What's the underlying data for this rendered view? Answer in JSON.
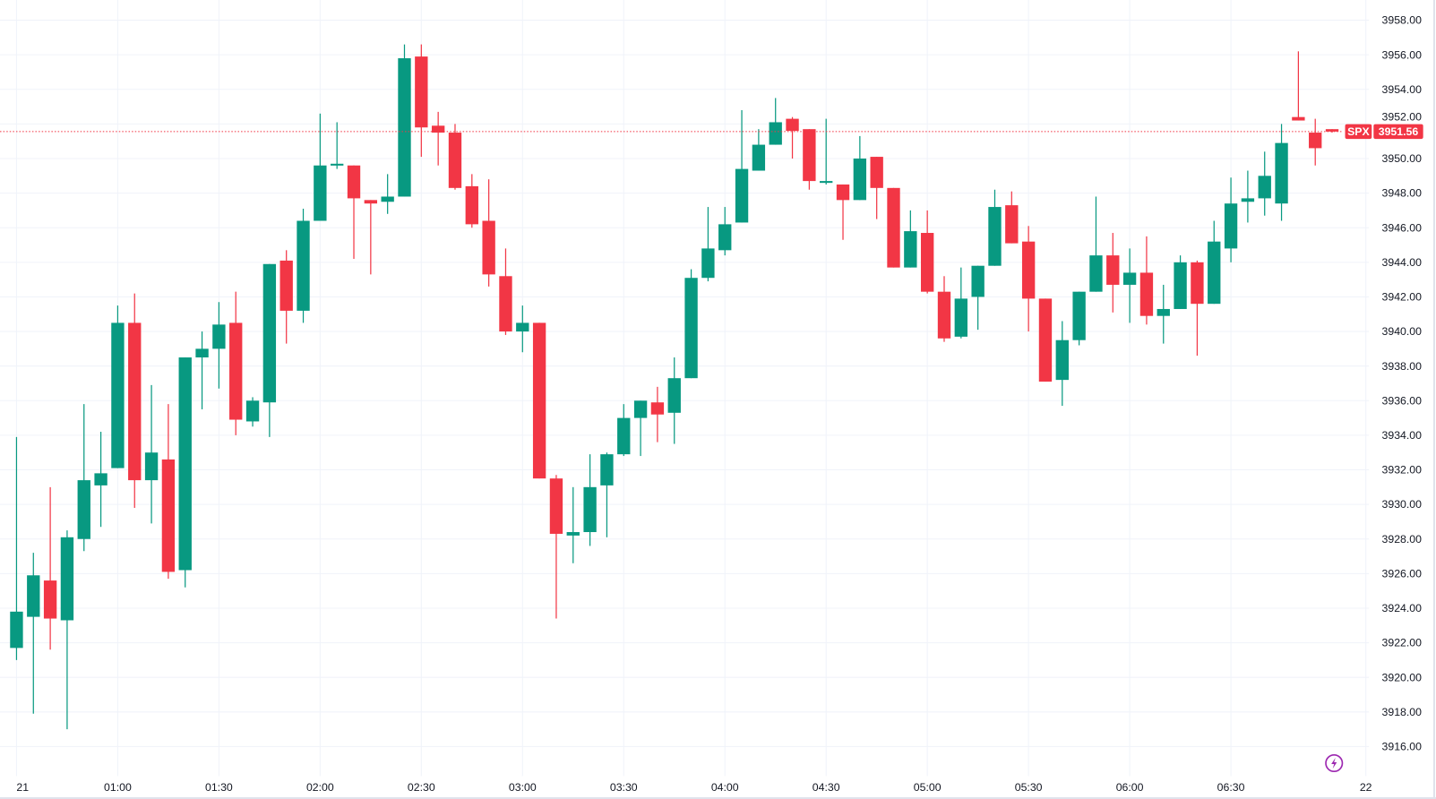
{
  "chart_data": {
    "type": "candlestick",
    "title": "",
    "symbol": "SPX",
    "last_price_label": "3951.56",
    "interval_minutes": 5,
    "ylim": [
      3915,
      3959
    ],
    "grid": true,
    "colors": {
      "up": "#089981",
      "down": "#F23645",
      "grid": "#F0F3FA",
      "last_price": "#F23645",
      "flash_icon": "#9C27B0"
    },
    "y_ticks": [
      "3958.00",
      "3956.00",
      "3954.00",
      "3952.00",
      "3950.00",
      "3948.00",
      "3946.00",
      "3944.00",
      "3942.00",
      "3940.00",
      "3938.00",
      "3936.00",
      "3934.00",
      "3932.00",
      "3930.00",
      "3928.00",
      "3926.00",
      "3924.00",
      "3922.00",
      "3920.00",
      "3918.00",
      "3916.00"
    ],
    "x_ticks": [
      {
        "label": "21",
        "index": 0
      },
      {
        "label": "01:00",
        "index": 6
      },
      {
        "label": "01:30",
        "index": 12
      },
      {
        "label": "02:00",
        "index": 18
      },
      {
        "label": "02:30",
        "index": 24
      },
      {
        "label": "03:00",
        "index": 30
      },
      {
        "label": "03:30",
        "index": 36
      },
      {
        "label": "04:00",
        "index": 42
      },
      {
        "label": "04:30",
        "index": 48
      },
      {
        "label": "05:00",
        "index": 54
      },
      {
        "label": "05:30",
        "index": 60
      },
      {
        "label": "06:00",
        "index": 66
      },
      {
        "label": "06:30",
        "index": 72
      },
      {
        "label": "22",
        "index": 80
      }
    ],
    "ohlc": [
      [
        3921.7,
        3933.9,
        3921.0,
        3923.8
      ],
      [
        3923.5,
        3927.2,
        3917.9,
        3925.9
      ],
      [
        3925.6,
        3931.0,
        3921.6,
        3923.4
      ],
      [
        3923.3,
        3928.5,
        3917.0,
        3928.1
      ],
      [
        3928.0,
        3935.8,
        3927.3,
        3931.4
      ],
      [
        3931.1,
        3934.2,
        3928.7,
        3931.8
      ],
      [
        3932.1,
        3941.5,
        3932.1,
        3940.5
      ],
      [
        3940.5,
        3942.2,
        3929.8,
        3931.4
      ],
      [
        3931.4,
        3936.9,
        3928.9,
        3933.0
      ],
      [
        3932.6,
        3935.8,
        3925.7,
        3926.1
      ],
      [
        3926.2,
        3938.5,
        3925.2,
        3938.5
      ],
      [
        3938.5,
        3940.0,
        3935.5,
        3939.0
      ],
      [
        3939.0,
        3941.7,
        3936.7,
        3940.4
      ],
      [
        3940.5,
        3942.3,
        3934.0,
        3934.9
      ],
      [
        3934.8,
        3936.2,
        3934.5,
        3936.0
      ],
      [
        3935.9,
        3943.9,
        3933.9,
        3943.9
      ],
      [
        3944.1,
        3944.7,
        3939.3,
        3941.2
      ],
      [
        3941.2,
        3947.1,
        3940.5,
        3946.4
      ],
      [
        3946.4,
        3952.6,
        3946.4,
        3949.6
      ],
      [
        3949.6,
        3952.1,
        3949.4,
        3949.7
      ],
      [
        3949.6,
        3949.6,
        3944.2,
        3947.7
      ],
      [
        3947.6,
        3947.6,
        3943.3,
        3947.4
      ],
      [
        3947.5,
        3949.1,
        3946.8,
        3947.8
      ],
      [
        3947.8,
        3956.6,
        3947.8,
        3955.8
      ],
      [
        3955.9,
        3956.6,
        3950.1,
        3951.8
      ],
      [
        3951.9,
        3952.7,
        3949.6,
        3951.5
      ],
      [
        3951.5,
        3952.0,
        3948.2,
        3948.3
      ],
      [
        3948.4,
        3949.1,
        3946.0,
        3946.2
      ],
      [
        3946.4,
        3948.8,
        3942.6,
        3943.3
      ],
      [
        3943.2,
        3944.8,
        3939.8,
        3940.0
      ],
      [
        3940.0,
        3941.5,
        3938.8,
        3940.5
      ],
      [
        3940.5,
        3940.5,
        3931.5,
        3931.5
      ],
      [
        3931.5,
        3931.7,
        3923.4,
        3928.3
      ],
      [
        3928.2,
        3931.0,
        3926.6,
        3928.4
      ],
      [
        3928.4,
        3932.9,
        3927.6,
        3931.0
      ],
      [
        3931.1,
        3933.0,
        3928.1,
        3932.9
      ],
      [
        3932.9,
        3935.8,
        3932.8,
        3935.0
      ],
      [
        3935.0,
        3936.0,
        3932.8,
        3936.0
      ],
      [
        3935.9,
        3936.8,
        3933.6,
        3935.2
      ],
      [
        3935.3,
        3938.5,
        3933.5,
        3937.3
      ],
      [
        3937.3,
        3943.6,
        3937.3,
        3943.1
      ],
      [
        3943.1,
        3947.2,
        3942.9,
        3944.8
      ],
      [
        3944.7,
        3947.2,
        3944.4,
        3946.2
      ],
      [
        3946.3,
        3952.8,
        3946.3,
        3949.4
      ],
      [
        3949.3,
        3951.7,
        3949.3,
        3950.8
      ],
      [
        3950.8,
        3953.5,
        3950.8,
        3952.1
      ],
      [
        3952.3,
        3952.4,
        3950.0,
        3951.6
      ],
      [
        3951.7,
        3951.7,
        3948.2,
        3948.7
      ],
      [
        3948.6,
        3952.3,
        3948.5,
        3948.7
      ],
      [
        3948.5,
        3948.5,
        3945.3,
        3947.6
      ],
      [
        3947.6,
        3951.3,
        3947.6,
        3950.0
      ],
      [
        3950.1,
        3950.1,
        3946.5,
        3948.3
      ],
      [
        3948.3,
        3948.3,
        3943.7,
        3943.7
      ],
      [
        3943.7,
        3947.0,
        3943.7,
        3945.8
      ],
      [
        3945.7,
        3947.0,
        3942.2,
        3942.3
      ],
      [
        3942.3,
        3943.2,
        3939.4,
        3939.6
      ],
      [
        3939.7,
        3943.7,
        3939.6,
        3941.9
      ],
      [
        3942.0,
        3943.8,
        3940.1,
        3943.8
      ],
      [
        3943.8,
        3948.2,
        3943.8,
        3947.2
      ],
      [
        3947.3,
        3948.1,
        3945.1,
        3945.1
      ],
      [
        3945.2,
        3946.1,
        3940.0,
        3941.9
      ],
      [
        3941.9,
        3941.9,
        3937.1,
        3937.1
      ],
      [
        3937.2,
        3940.6,
        3935.7,
        3939.5
      ],
      [
        3939.5,
        3942.3,
        3939.2,
        3942.3
      ],
      [
        3942.3,
        3947.8,
        3942.3,
        3944.4
      ],
      [
        3944.4,
        3945.7,
        3941.1,
        3942.7
      ],
      [
        3942.7,
        3944.8,
        3940.5,
        3943.4
      ],
      [
        3943.4,
        3945.5,
        3940.4,
        3940.9
      ],
      [
        3940.9,
        3942.7,
        3939.3,
        3941.3
      ],
      [
        3941.3,
        3944.4,
        3941.3,
        3944.0
      ],
      [
        3944.0,
        3944.1,
        3938.6,
        3941.6
      ],
      [
        3941.6,
        3946.4,
        3941.6,
        3945.2
      ],
      [
        3944.8,
        3948.9,
        3944.0,
        3947.4
      ],
      [
        3947.5,
        3949.3,
        3946.3,
        3947.7
      ],
      [
        3947.7,
        3950.4,
        3946.7,
        3949.0
      ],
      [
        3947.4,
        3952.0,
        3946.4,
        3950.9
      ],
      [
        3952.4,
        3956.2,
        3952.2,
        3952.2
      ],
      [
        3951.5,
        3952.3,
        3949.6,
        3950.6
      ],
      [
        3951.7,
        3951.7,
        3951.5,
        3951.56
      ]
    ]
  }
}
